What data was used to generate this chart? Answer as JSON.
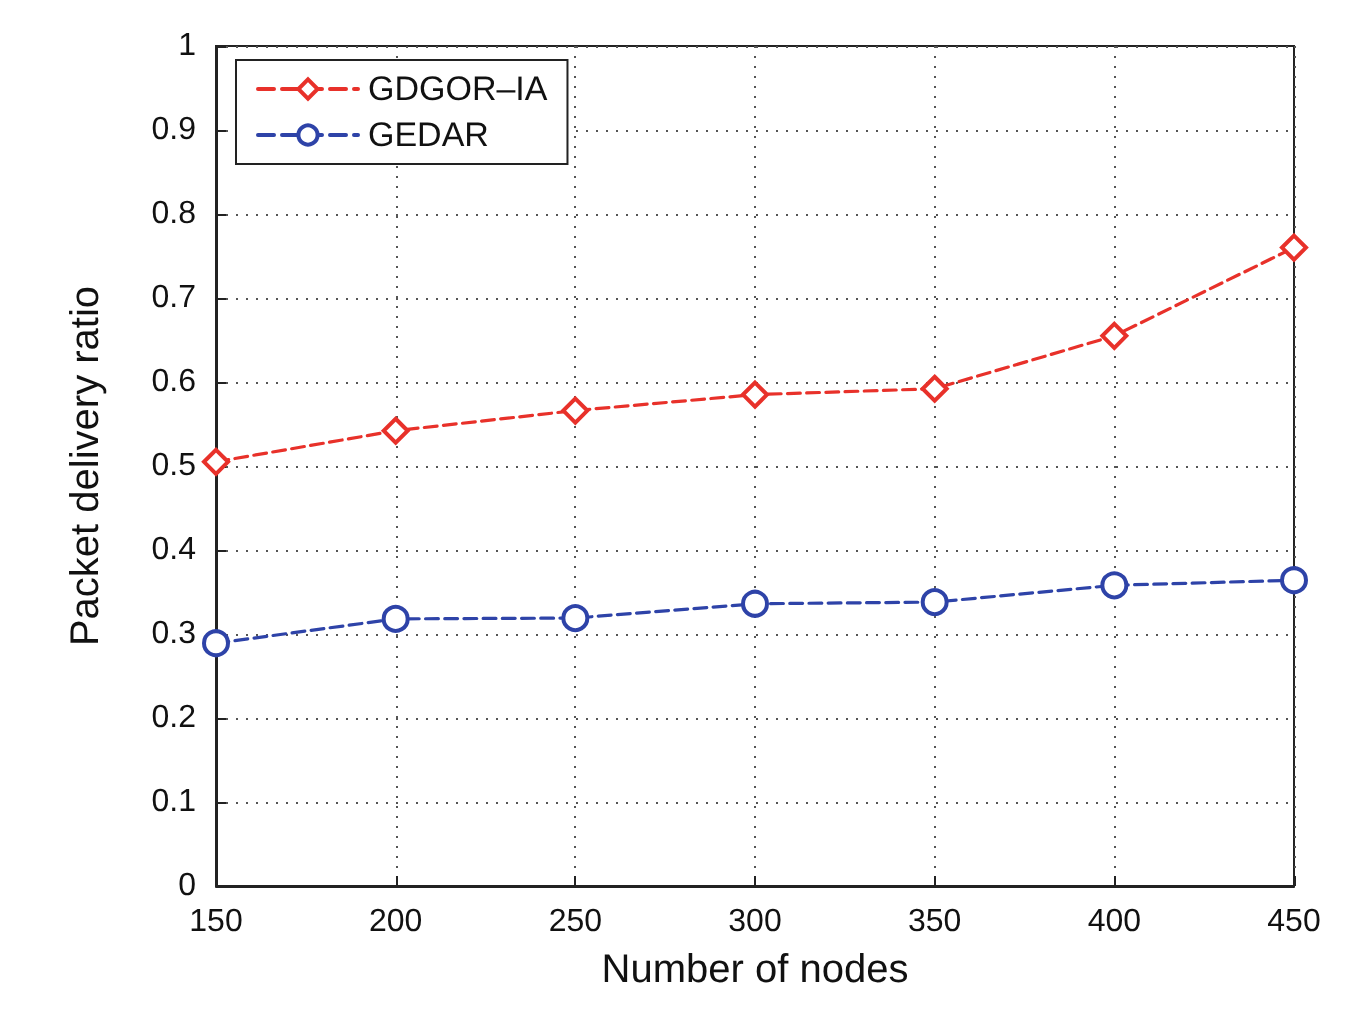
{
  "chart_data": {
    "type": "line",
    "xlabel": "Number of nodes",
    "ylabel": "Packet delivery ratio",
    "x": [
      150,
      200,
      250,
      300,
      350,
      400,
      450
    ],
    "series": [
      {
        "name": "GDGOR–IA",
        "color": "#e8312a",
        "marker": "diamond",
        "values": [
          0.505,
          0.542,
          0.566,
          0.585,
          0.592,
          0.655,
          0.76
        ]
      },
      {
        "name": "GEDAR",
        "color": "#2e43a8",
        "marker": "circle",
        "values": [
          0.289,
          0.318,
          0.319,
          0.336,
          0.338,
          0.358,
          0.364
        ]
      }
    ],
    "xlim": [
      150,
      450
    ],
    "xticks": [
      150,
      200,
      250,
      300,
      350,
      400,
      450
    ],
    "ylim": [
      0,
      1
    ],
    "yticks": [
      0,
      0.1,
      0.2,
      0.3,
      0.4,
      0.5,
      0.6,
      0.7,
      0.8,
      0.9,
      1
    ],
    "grid": true,
    "legend": "top left",
    "line_style": "dashed"
  }
}
